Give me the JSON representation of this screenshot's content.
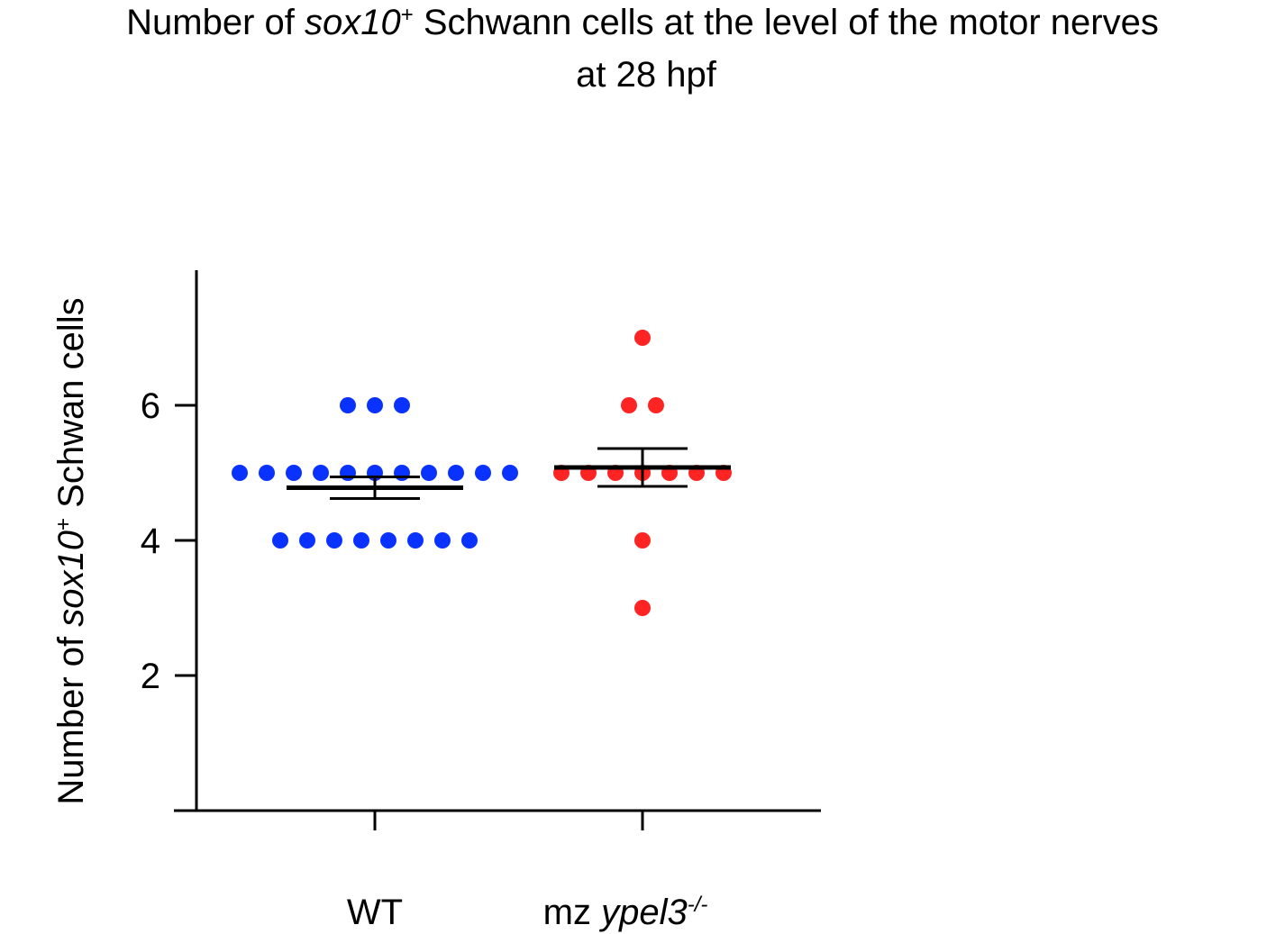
{
  "chart_data": {
    "type": "scatter",
    "title": {
      "line1_pre": "Number of ",
      "line1_gene": "sox10",
      "line1_sup": "+",
      "line1_post": " Schwann cells at the level of the motor nerves",
      "line2": "at 28 hpf"
    },
    "ylabel": {
      "pre": "Number of ",
      "gene": "sox10",
      "sup": "+",
      "post": " Schwan cells"
    },
    "ylim": [
      0,
      8
    ],
    "yticks": [
      2,
      4,
      6
    ],
    "ytick_labels": [
      "2",
      "4",
      "6"
    ],
    "categories": [
      {
        "label": "WT",
        "italic_part": "",
        "sup": ""
      },
      {
        "label": "mz ",
        "italic_part": "ypel3",
        "sup": "-/-"
      }
    ],
    "series": [
      {
        "values": [
          6,
          6,
          6,
          5,
          5,
          5,
          5,
          5,
          5,
          5,
          5,
          5,
          5,
          5,
          4,
          4,
          4,
          4,
          4,
          4,
          4,
          4
        ],
        "mean": 4.78,
        "sem_low": 4.62,
        "sem_high": 4.94,
        "color": "#0a32ff"
      },
      {
        "values": [
          7,
          6,
          6,
          5,
          5,
          5,
          5,
          5,
          5,
          5,
          4,
          3
        ],
        "mean": 5.08,
        "sem_low": 4.8,
        "sem_high": 5.36,
        "color": "#ff2424"
      }
    ],
    "grid": false,
    "legend": "none"
  }
}
